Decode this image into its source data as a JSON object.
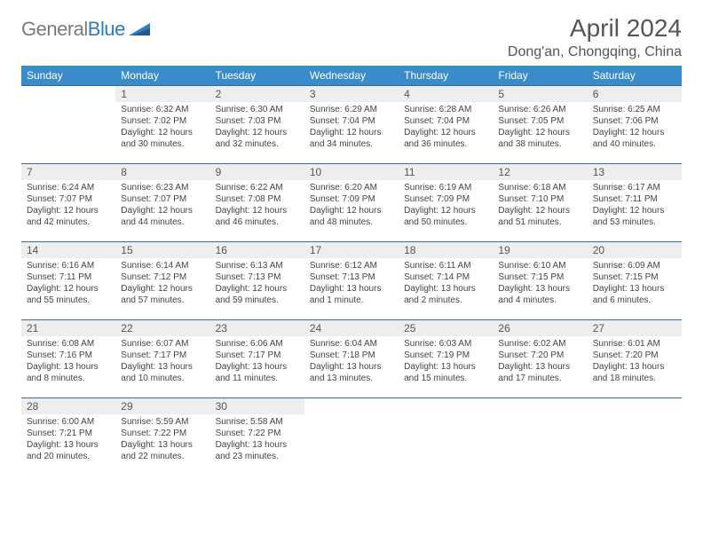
{
  "logo": {
    "general": "General",
    "blue": "Blue"
  },
  "title": "April 2024",
  "location": "Dong'an, Chongqing, China",
  "colors": {
    "header_bg": "#3a8bc9",
    "header_text": "#ffffff",
    "daybar_bg": "#eeeeee",
    "daybar_border": "#3a6a95",
    "body_text": "#444444",
    "title_text": "#555555",
    "logo_gray": "#7b7b7b",
    "logo_blue": "#2d7dc1"
  },
  "weekdays": [
    "Sunday",
    "Monday",
    "Tuesday",
    "Wednesday",
    "Thursday",
    "Friday",
    "Saturday"
  ],
  "weeks": [
    [
      null,
      {
        "n": "1",
        "l1": "Sunrise: 6:32 AM",
        "l2": "Sunset: 7:02 PM",
        "l3": "Daylight: 12 hours",
        "l4": "and 30 minutes."
      },
      {
        "n": "2",
        "l1": "Sunrise: 6:30 AM",
        "l2": "Sunset: 7:03 PM",
        "l3": "Daylight: 12 hours",
        "l4": "and 32 minutes."
      },
      {
        "n": "3",
        "l1": "Sunrise: 6:29 AM",
        "l2": "Sunset: 7:04 PM",
        "l3": "Daylight: 12 hours",
        "l4": "and 34 minutes."
      },
      {
        "n": "4",
        "l1": "Sunrise: 6:28 AM",
        "l2": "Sunset: 7:04 PM",
        "l3": "Daylight: 12 hours",
        "l4": "and 36 minutes."
      },
      {
        "n": "5",
        "l1": "Sunrise: 6:26 AM",
        "l2": "Sunset: 7:05 PM",
        "l3": "Daylight: 12 hours",
        "l4": "and 38 minutes."
      },
      {
        "n": "6",
        "l1": "Sunrise: 6:25 AM",
        "l2": "Sunset: 7:06 PM",
        "l3": "Daylight: 12 hours",
        "l4": "and 40 minutes."
      }
    ],
    [
      {
        "n": "7",
        "l1": "Sunrise: 6:24 AM",
        "l2": "Sunset: 7:07 PM",
        "l3": "Daylight: 12 hours",
        "l4": "and 42 minutes."
      },
      {
        "n": "8",
        "l1": "Sunrise: 6:23 AM",
        "l2": "Sunset: 7:07 PM",
        "l3": "Daylight: 12 hours",
        "l4": "and 44 minutes."
      },
      {
        "n": "9",
        "l1": "Sunrise: 6:22 AM",
        "l2": "Sunset: 7:08 PM",
        "l3": "Daylight: 12 hours",
        "l4": "and 46 minutes."
      },
      {
        "n": "10",
        "l1": "Sunrise: 6:20 AM",
        "l2": "Sunset: 7:09 PM",
        "l3": "Daylight: 12 hours",
        "l4": "and 48 minutes."
      },
      {
        "n": "11",
        "l1": "Sunrise: 6:19 AM",
        "l2": "Sunset: 7:09 PM",
        "l3": "Daylight: 12 hours",
        "l4": "and 50 minutes."
      },
      {
        "n": "12",
        "l1": "Sunrise: 6:18 AM",
        "l2": "Sunset: 7:10 PM",
        "l3": "Daylight: 12 hours",
        "l4": "and 51 minutes."
      },
      {
        "n": "13",
        "l1": "Sunrise: 6:17 AM",
        "l2": "Sunset: 7:11 PM",
        "l3": "Daylight: 12 hours",
        "l4": "and 53 minutes."
      }
    ],
    [
      {
        "n": "14",
        "l1": "Sunrise: 6:16 AM",
        "l2": "Sunset: 7:11 PM",
        "l3": "Daylight: 12 hours",
        "l4": "and 55 minutes."
      },
      {
        "n": "15",
        "l1": "Sunrise: 6:14 AM",
        "l2": "Sunset: 7:12 PM",
        "l3": "Daylight: 12 hours",
        "l4": "and 57 minutes."
      },
      {
        "n": "16",
        "l1": "Sunrise: 6:13 AM",
        "l2": "Sunset: 7:13 PM",
        "l3": "Daylight: 12 hours",
        "l4": "and 59 minutes."
      },
      {
        "n": "17",
        "l1": "Sunrise: 6:12 AM",
        "l2": "Sunset: 7:13 PM",
        "l3": "Daylight: 13 hours",
        "l4": "and 1 minute."
      },
      {
        "n": "18",
        "l1": "Sunrise: 6:11 AM",
        "l2": "Sunset: 7:14 PM",
        "l3": "Daylight: 13 hours",
        "l4": "and 2 minutes."
      },
      {
        "n": "19",
        "l1": "Sunrise: 6:10 AM",
        "l2": "Sunset: 7:15 PM",
        "l3": "Daylight: 13 hours",
        "l4": "and 4 minutes."
      },
      {
        "n": "20",
        "l1": "Sunrise: 6:09 AM",
        "l2": "Sunset: 7:15 PM",
        "l3": "Daylight: 13 hours",
        "l4": "and 6 minutes."
      }
    ],
    [
      {
        "n": "21",
        "l1": "Sunrise: 6:08 AM",
        "l2": "Sunset: 7:16 PM",
        "l3": "Daylight: 13 hours",
        "l4": "and 8 minutes."
      },
      {
        "n": "22",
        "l1": "Sunrise: 6:07 AM",
        "l2": "Sunset: 7:17 PM",
        "l3": "Daylight: 13 hours",
        "l4": "and 10 minutes."
      },
      {
        "n": "23",
        "l1": "Sunrise: 6:06 AM",
        "l2": "Sunset: 7:17 PM",
        "l3": "Daylight: 13 hours",
        "l4": "and 11 minutes."
      },
      {
        "n": "24",
        "l1": "Sunrise: 6:04 AM",
        "l2": "Sunset: 7:18 PM",
        "l3": "Daylight: 13 hours",
        "l4": "and 13 minutes."
      },
      {
        "n": "25",
        "l1": "Sunrise: 6:03 AM",
        "l2": "Sunset: 7:19 PM",
        "l3": "Daylight: 13 hours",
        "l4": "and 15 minutes."
      },
      {
        "n": "26",
        "l1": "Sunrise: 6:02 AM",
        "l2": "Sunset: 7:20 PM",
        "l3": "Daylight: 13 hours",
        "l4": "and 17 minutes."
      },
      {
        "n": "27",
        "l1": "Sunrise: 6:01 AM",
        "l2": "Sunset: 7:20 PM",
        "l3": "Daylight: 13 hours",
        "l4": "and 18 minutes."
      }
    ],
    [
      {
        "n": "28",
        "l1": "Sunrise: 6:00 AM",
        "l2": "Sunset: 7:21 PM",
        "l3": "Daylight: 13 hours",
        "l4": "and 20 minutes."
      },
      {
        "n": "29",
        "l1": "Sunrise: 5:59 AM",
        "l2": "Sunset: 7:22 PM",
        "l3": "Daylight: 13 hours",
        "l4": "and 22 minutes."
      },
      {
        "n": "30",
        "l1": "Sunrise: 5:58 AM",
        "l2": "Sunset: 7:22 PM",
        "l3": "Daylight: 13 hours",
        "l4": "and 23 minutes."
      },
      null,
      null,
      null,
      null
    ]
  ]
}
